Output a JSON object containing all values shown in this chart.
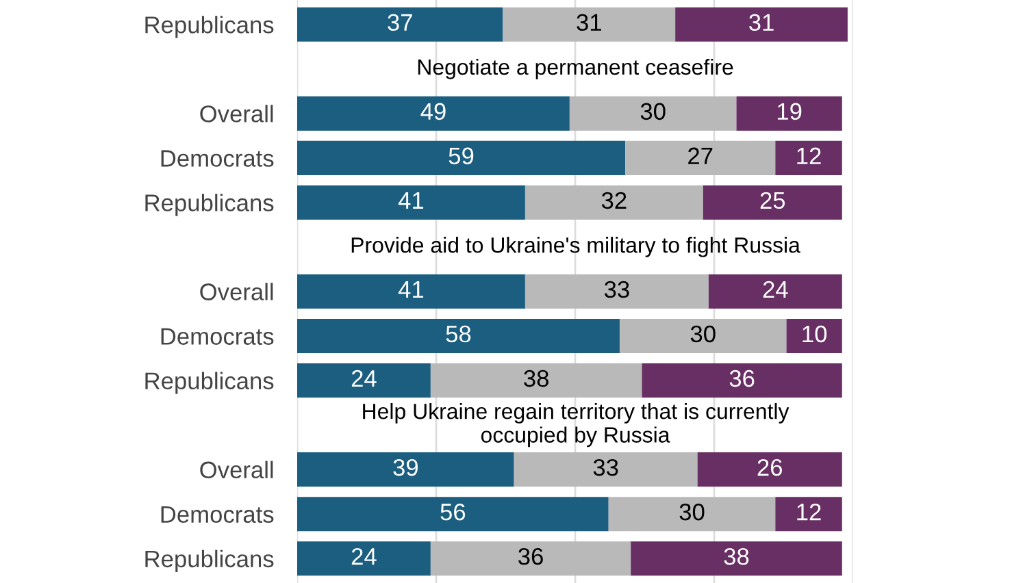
{
  "chart_data": {
    "type": "bar",
    "orientation": "horizontal",
    "stacked": true,
    "data_labels": true,
    "grid": "x",
    "tick_labels": "y",
    "legend": false,
    "categories": [
      "Republicans",
      null,
      "Overall",
      "Democrats",
      "Republicans",
      null,
      "Overall",
      "Democrats",
      "Republicans",
      null,
      "Overall",
      "Democrats",
      "Republicans"
    ],
    "annotations": [
      "Negotiate a permanent ceasefire",
      "Provide aid to Ukraine's military to fight Russia",
      "Help Ukraine regain territory that is currently\noccupied by Russia"
    ],
    "xlim": [
      0,
      100
    ],
    "xticks": [
      {
        "value": 0,
        "label": null
      },
      {
        "value": 25,
        "label": null
      },
      {
        "value": 50,
        "label": null
      },
      {
        "value": 75,
        "label": null
      },
      {
        "value": 100,
        "label": null
      }
    ],
    "series": [
      {
        "color": "#1b5e80",
        "values": [
          37,
          null,
          49,
          59,
          41,
          null,
          41,
          58,
          24,
          null,
          39,
          56,
          24
        ]
      },
      {
        "color": "#b9b9b9",
        "values": [
          31,
          null,
          30,
          27,
          32,
          null,
          33,
          30,
          38,
          null,
          33,
          30,
          36
        ]
      },
      {
        "color": "#672f63",
        "values": [
          31,
          null,
          19,
          12,
          25,
          null,
          24,
          10,
          36,
          null,
          26,
          12,
          38
        ]
      }
    ]
  }
}
